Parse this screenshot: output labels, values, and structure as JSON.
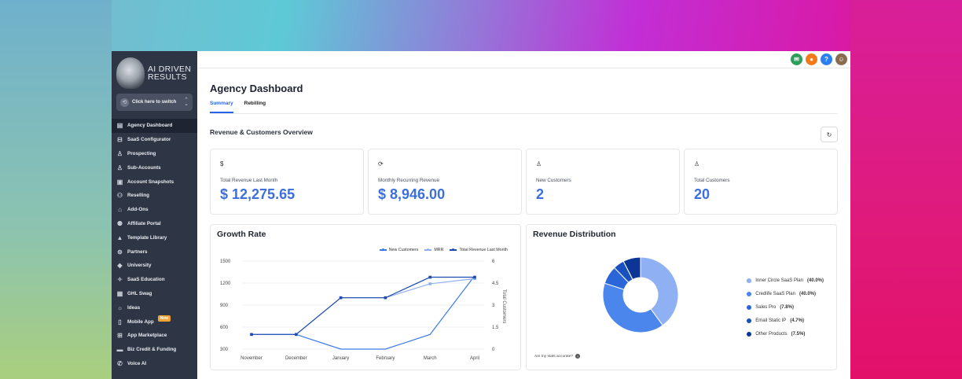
{
  "sidebar": {
    "logo_line1": "AI DRIVEN",
    "logo_line2": "RESULTS",
    "switcher_label": "Click here to switch",
    "items": [
      {
        "label": "Agency Dashboard",
        "icon": "dashboard-icon",
        "glyph": "▤",
        "active": true
      },
      {
        "label": "SaaS Configurator",
        "icon": "chart-icon",
        "glyph": "⊟"
      },
      {
        "label": "Prospecting",
        "icon": "users-search-icon",
        "glyph": "♙"
      },
      {
        "label": "Sub-Accounts",
        "icon": "user-icon",
        "glyph": "♙"
      },
      {
        "label": "Account Snapshots",
        "icon": "image-icon",
        "glyph": "▣"
      },
      {
        "label": "Reselling",
        "icon": "reselling-icon",
        "glyph": "⚇"
      },
      {
        "label": "Add-Ons",
        "icon": "bag-icon",
        "glyph": "⌂"
      },
      {
        "label": "Affiliate Portal",
        "icon": "affiliate-icon",
        "glyph": "⚉"
      },
      {
        "label": "Template Library",
        "icon": "template-icon",
        "glyph": "▲"
      },
      {
        "label": "Partners",
        "icon": "handshake-icon",
        "glyph": "⊚"
      },
      {
        "label": "University",
        "icon": "graduation-icon",
        "glyph": "◆"
      },
      {
        "label": "SaaS Education",
        "icon": "education-icon",
        "glyph": "✧"
      },
      {
        "label": "GHL Swag",
        "icon": "swag-icon",
        "glyph": "▦"
      },
      {
        "label": "Ideas",
        "icon": "lightbulb-icon",
        "glyph": "☼"
      },
      {
        "label": "Mobile App",
        "icon": "mobile-icon",
        "glyph": "▯",
        "badge": "New"
      },
      {
        "label": "App Marketplace",
        "icon": "grid-icon",
        "glyph": "⊞"
      },
      {
        "label": "Biz Credit & Funding",
        "icon": "card-icon",
        "glyph": "▬"
      },
      {
        "label": "Voice AI",
        "icon": "phone-icon",
        "glyph": "✆"
      }
    ]
  },
  "topbar": {
    "buttons": [
      {
        "name": "announcements-icon",
        "glyph": "✉",
        "color": "#2f9e5b"
      },
      {
        "name": "notifications-icon",
        "glyph": "●",
        "color": "#f27a1a"
      },
      {
        "name": "help-icon",
        "glyph": "?",
        "color": "#2d7ff0"
      },
      {
        "name": "avatar",
        "glyph": "☺",
        "color": "#8a6b4f"
      }
    ]
  },
  "page": {
    "title": "Agency Dashboard",
    "tabs": [
      {
        "label": "Summary",
        "active": true
      },
      {
        "label": "Rebilling"
      }
    ],
    "section_title": "Revenue & Customers Overview",
    "refresh_glyph": "↻"
  },
  "stats": [
    {
      "icon": "dollar-icon",
      "glyph": "$",
      "label": "Total Revenue Last Month",
      "value": "$ 12,275.65"
    },
    {
      "icon": "recurring-icon",
      "glyph": "⟳",
      "label": "Monthly Recurring Revenue",
      "value": "$ 8,946.00"
    },
    {
      "icon": "new-customer-icon",
      "glyph": "♙",
      "label": "New Customers",
      "value": "2"
    },
    {
      "icon": "customers-icon",
      "glyph": "♙",
      "label": "Total Customers",
      "value": "20"
    }
  ],
  "growth": {
    "title": "Growth Rate",
    "right_axis_label": "Total Customers"
  },
  "distribution": {
    "title": "Revenue Distribution",
    "accuracy_text": "Are my stats accurate?"
  },
  "chart_data": [
    {
      "type": "line",
      "title": "Growth Rate",
      "categories": [
        "November",
        "December",
        "January",
        "February",
        "March",
        "April"
      ],
      "ylim": [
        300,
        1500
      ],
      "yticks": [
        300,
        600,
        900,
        1200,
        1500
      ],
      "y2lim": [
        0,
        6
      ],
      "y2ticks": [
        "0",
        "1.5",
        "3",
        "4.5",
        "6"
      ],
      "y2label": "Total Customers",
      "series": [
        {
          "name": "New Customers",
          "axis": "right",
          "color": "#3b7be8",
          "values": [
            1,
            1,
            0,
            0,
            1,
            5
          ]
        },
        {
          "name": "MRR",
          "axis": "left",
          "color": "#8fb0ee",
          "values": [
            500,
            500,
            1000,
            1000,
            1190,
            1260
          ]
        },
        {
          "name": "Total Revenue Last Month",
          "axis": "left",
          "color": "#1f4bb0",
          "values": [
            500,
            500,
            1000,
            1000,
            1280,
            1280
          ]
        }
      ],
      "legend": "top-right"
    },
    {
      "type": "pie",
      "title": "Revenue Distribution",
      "donut": true,
      "slices": [
        {
          "label": "Inner Circle SaaS Plan",
          "pct": "(40.0%)",
          "value": 40.0,
          "color": "#8fb0f3"
        },
        {
          "label": "Credlife SaaS Plan",
          "pct": "(40.0%)",
          "value": 40.0,
          "color": "#4a86ec"
        },
        {
          "label": "Sales Pro",
          "pct": "(7.8%)",
          "value": 7.8,
          "color": "#2a66d8"
        },
        {
          "label": "Email Static IP",
          "pct": "(4.7%)",
          "value": 4.7,
          "color": "#1a4fc0"
        },
        {
          "label": "Other Products",
          "pct": "(7.5%)",
          "value": 7.5,
          "color": "#0d3596"
        }
      ],
      "legend": "right"
    }
  ]
}
